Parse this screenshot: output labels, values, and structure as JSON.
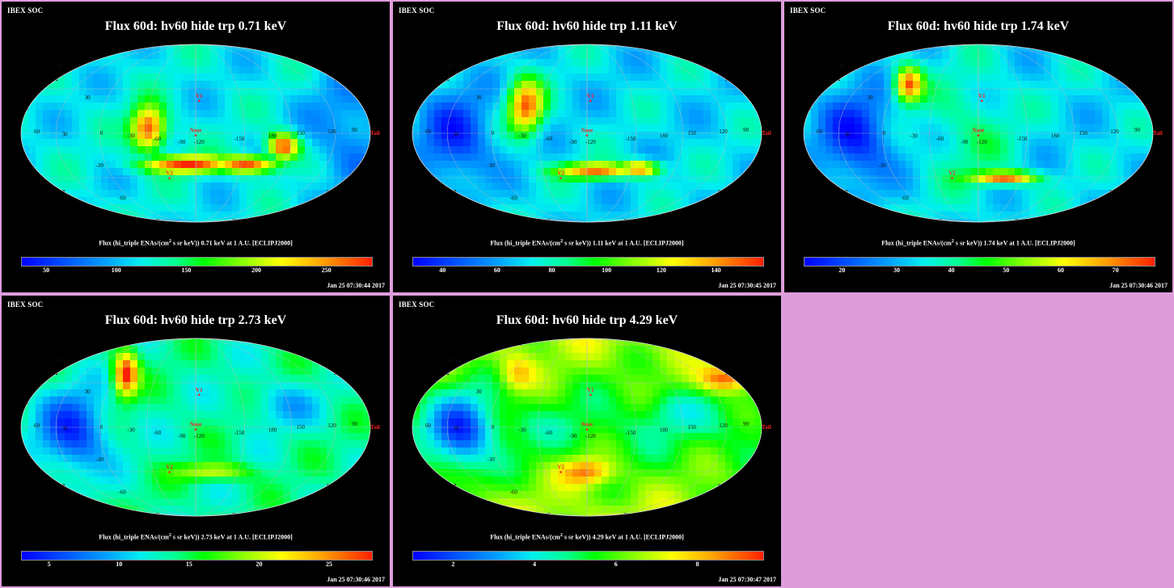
{
  "panels": [
    {
      "label": "IBEX SOC",
      "title": "Flux 60d: hv60 hide trp 0.71 keV",
      "colorbar": {
        "title_prefix": "Flux (hi_triple ENAs/(cm",
        "title_sup": "2",
        "title_suffix": " s sr keV)) 0.71 keV at 1 A.U. [ECLIPJ2000]",
        "ticks": [
          "50",
          "100",
          "150",
          "200",
          "250"
        ],
        "tick_values": [
          50,
          100,
          150,
          200,
          250
        ],
        "range": [
          32,
          282
        ]
      },
      "timestamp": "Jan 25 07:30:44 2017",
      "ribbon": "strong"
    },
    {
      "label": "IBEX SOC",
      "title": "Flux 60d: hv60 hide trp 1.11 keV",
      "colorbar": {
        "title_prefix": "Flux (hi_triple ENAs/(cm",
        "title_sup": "2",
        "title_suffix": " s sr keV)) 1.11 keV at 1 A.U. [ECLIPJ2000]",
        "ticks": [
          "40",
          "60",
          "80",
          "100",
          "120",
          "140"
        ],
        "tick_values": [
          40,
          60,
          80,
          100,
          120,
          140
        ],
        "range": [
          29,
          157
        ]
      },
      "timestamp": "Jan 25 07:30:45 2017",
      "ribbon": "medium"
    },
    {
      "label": "IBEX SOC",
      "title": "Flux 60d: hv60 hide trp 1.74 keV",
      "colorbar": {
        "title_prefix": "Flux (hi_triple ENAs/(cm",
        "title_sup": "2",
        "title_suffix": " s sr keV)) 1.74 keV at 1 A.U. [ECLIPJ2000]",
        "ticks": [
          "20",
          "30",
          "40",
          "50",
          "60",
          "70"
        ],
        "tick_values": [
          20,
          30,
          40,
          50,
          60,
          70
        ],
        "range": [
          13,
          77
        ]
      },
      "timestamp": "Jan 25 07:30:46 2017",
      "ribbon": "knot"
    },
    {
      "label": "IBEX SOC",
      "title": "Flux 60d: hv60 hide trp 2.73 keV",
      "colorbar": {
        "title_prefix": "Flux (hi_triple ENAs/(cm",
        "title_sup": "2",
        "title_suffix": " s sr keV)) 2.73 keV at 1 A.U. [ECLIPJ2000]",
        "ticks": [
          "5",
          "10",
          "15",
          "20",
          "25"
        ],
        "tick_values": [
          5,
          10,
          15,
          20,
          25
        ],
        "range": [
          3,
          28
        ]
      },
      "timestamp": "Jan 25 07:30:46 2017",
      "ribbon": "broad"
    },
    {
      "label": "IBEX SOC",
      "title": "Flux 60d: hv60 hide trp 4.29 keV",
      "colorbar": {
        "title_prefix": "Flux (hi_triple ENAs/(cm",
        "title_sup": "2",
        "title_suffix": " s sr keV)) 4.29 keV at 1 A.U. [ECLIPJ2000]",
        "ticks": [
          "2",
          "4",
          "6",
          "8"
        ],
        "tick_values": [
          2,
          4,
          6,
          8
        ],
        "range": [
          1,
          9.6
        ]
      },
      "timestamp": "Jan 25 07:30:47 2017",
      "ribbon": "diffuse"
    }
  ],
  "map_labels": {
    "longitudes": [
      "60",
      "30",
      "0",
      "-30",
      "-60",
      "-90",
      "-120",
      "-150",
      "180",
      "150",
      "120",
      "90"
    ],
    "latitudes": [
      "60",
      "30",
      "-30",
      "-60"
    ],
    "v1": "V1",
    "v2": "V2",
    "nose": "Nose",
    "tail": "Tail"
  },
  "colors": {
    "page_bg": "#dd9ddb",
    "panel_bg": "#000000",
    "marker": "#ff2020"
  }
}
